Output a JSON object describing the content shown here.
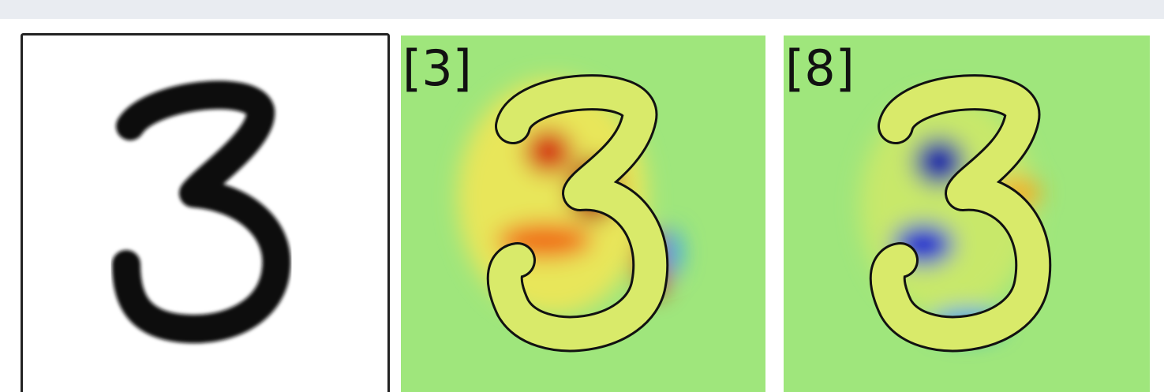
{
  "panels": [
    {
      "label": "[3]"
    },
    {
      "label": "[8]"
    }
  ]
}
